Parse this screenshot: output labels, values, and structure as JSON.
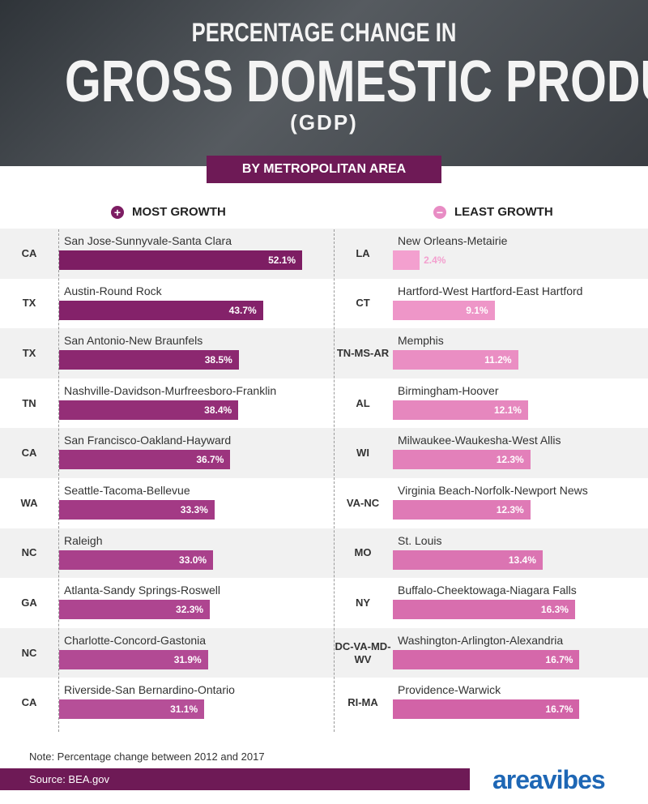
{
  "header": {
    "line1": "PERCENTAGE CHANGE IN",
    "line2": "GROSS DOMESTIC PRODUCT",
    "line3": "(GDP)",
    "banner": "BY METROPOLITAN AREA"
  },
  "chart_data": [
    {
      "type": "bar",
      "title": "MOST GROWTH",
      "categories": [
        "San Jose-Sunnyvale-Santa Clara",
        "Austin-Round Rock",
        "San Antonio-New Braunfels",
        "Nashville-Davidson-Murfreesboro-Franklin",
        "San Francisco-Oakland-Hayward",
        "Seattle-Tacoma-Bellevue",
        "Raleigh",
        "Atlanta-Sandy Springs-Roswell",
        "Charlotte-Concord-Gastonia",
        "Riverside-San Bernardino-Ontario"
      ],
      "states": [
        "CA",
        "TX",
        "TX",
        "TN",
        "CA",
        "WA",
        "NC",
        "GA",
        "NC",
        "CA"
      ],
      "values": [
        52.1,
        43.7,
        38.5,
        38.4,
        36.7,
        33.3,
        33.0,
        32.3,
        31.9,
        31.1
      ],
      "value_labels": [
        "52.1%",
        "43.7%",
        "38.5%",
        "38.4%",
        "36.7%",
        "33.3%",
        "33.0%",
        "32.3%",
        "31.9%",
        "31.1%"
      ],
      "colors": [
        "#7d1d63",
        "#84226a",
        "#8c2870",
        "#942e77",
        "#9c347e",
        "#a33a85",
        "#a9408b",
        "#ae4590",
        "#b24a94",
        "#b64f98"
      ],
      "icon_color": "#7d1d63"
    },
    {
      "type": "bar",
      "title": "LEAST GROWTH",
      "categories": [
        "New Orleans-Metairie",
        "Hartford-West Hartford-East Hartford",
        "Memphis",
        "Birmingham-Hoover",
        "Milwaukee-Waukesha-West Allis",
        "Virginia Beach-Norfolk-Newport News",
        "St. Louis",
        "Buffalo-Cheektowaga-Niagara Falls",
        "Washington-Arlington-Alexandria",
        "Providence-Warwick"
      ],
      "states": [
        "LA",
        "CT",
        "TN-MS-AR",
        "AL",
        "WI",
        "VA-NC",
        "MO",
        "NY",
        "DC-VA-MD-WV",
        "RI-MA"
      ],
      "values": [
        2.4,
        9.1,
        11.2,
        12.1,
        12.3,
        12.3,
        13.4,
        16.3,
        16.7,
        16.7
      ],
      "value_labels": [
        "2.4%",
        "9.1%",
        "11.2%",
        "12.1%",
        "12.3%",
        "12.3%",
        "13.4%",
        "16.3%",
        "16.7%",
        "16.7%"
      ],
      "colors": [
        "#f3a0cf",
        "#ee96c8",
        "#ea8ec3",
        "#e687be",
        "#e380ba",
        "#df7ab6",
        "#db74b2",
        "#d86eae",
        "#d568aa",
        "#d263a7"
      ],
      "icon_color": "#e88cc4"
    }
  ],
  "footer": {
    "note": "Note: Percentage change between 2012 and 2017",
    "source": "Source: BEA.gov",
    "logo": "areavibes"
  }
}
